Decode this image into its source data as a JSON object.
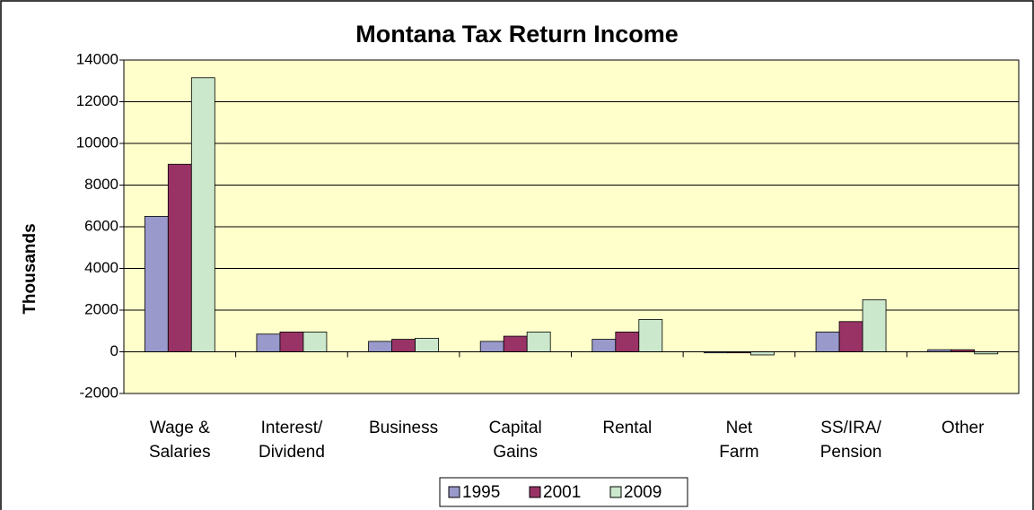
{
  "chart_data": {
    "type": "bar",
    "title": "Montana Tax Return Income",
    "y_label": "Thousands",
    "categories": [
      "Wage &\nSalaries",
      "Interest/\nDividend",
      "Business",
      "Capital\nGains",
      "Rental",
      "Net\nFarm",
      "SS/IRA/\nPension",
      "Other"
    ],
    "series": [
      {
        "name": "1995",
        "color": "#9999cc",
        "values": [
          6500,
          850,
          500,
          500,
          600,
          -50,
          950,
          100
        ]
      },
      {
        "name": "2001",
        "color": "#993366",
        "values": [
          9000,
          950,
          600,
          750,
          950,
          -50,
          1450,
          100
        ]
      },
      {
        "name": "2009",
        "color": "#cce8cc",
        "values": [
          13150,
          950,
          650,
          950,
          1550,
          -150,
          2500,
          -100
        ]
      }
    ],
    "ylim": [
      -2000,
      14000
    ],
    "yticks": [
      -2000,
      0,
      2000,
      4000,
      6000,
      8000,
      10000,
      12000,
      14000
    ],
    "grid": true,
    "legend": "bottom"
  }
}
